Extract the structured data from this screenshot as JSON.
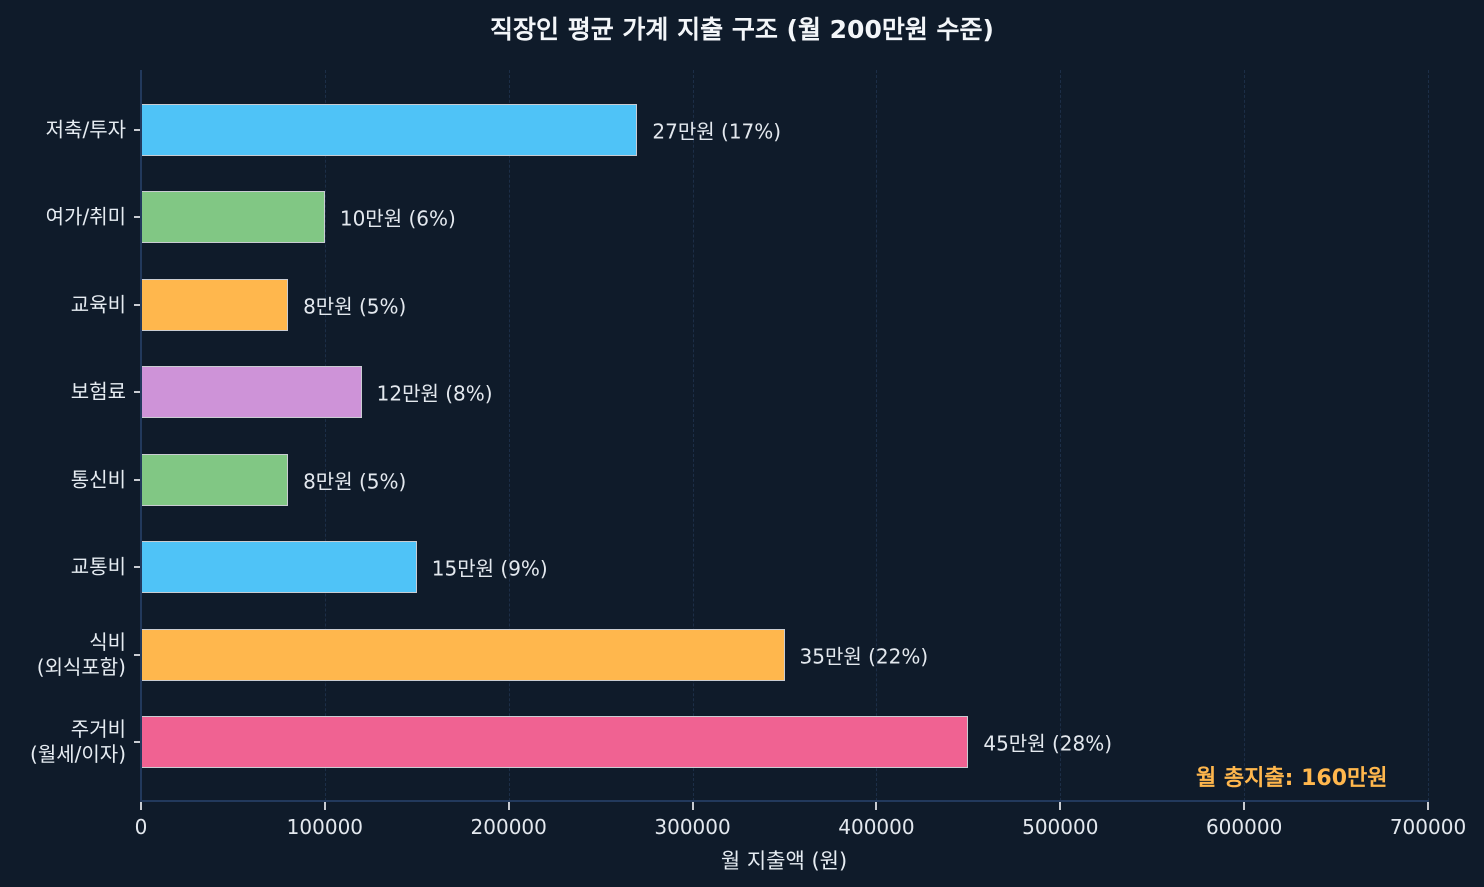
{
  "chart_data": {
    "type": "bar",
    "orientation": "horizontal",
    "title": "직장인 평균 가계 지출 구조 (월 200만원 수준)",
    "xlabel": "월 지출액 (원)",
    "ylabel": "",
    "xlim": [
      0,
      700000
    ],
    "xticks": [
      "0",
      "100000",
      "200000",
      "300000",
      "400000",
      "500000",
      "600000",
      "700000"
    ],
    "grid": "vertical dashed",
    "categories": [
      "저축/투자",
      "여가/취미",
      "교육비",
      "보험료",
      "통신비",
      "교통비",
      "식비\n(외식포함)",
      "주거비\n(월세/이자)"
    ],
    "values": [
      270000,
      100000,
      80000,
      120000,
      80000,
      150000,
      350000,
      450000
    ],
    "colors": [
      "#4fc3f7",
      "#81c784",
      "#ffb74d",
      "#ce93d8",
      "#81c784",
      "#4fc3f7",
      "#ffb74d",
      "#f06292"
    ],
    "data_labels": [
      "27만원 (17%)",
      "10만원 (6%)",
      "8만원 (5%)",
      "12만원 (8%)",
      "8만원 (5%)",
      "15만원 (9%)",
      "35만원 (22%)",
      "45만원 (28%)"
    ],
    "annotations": [
      "월 총지출: 160만원"
    ]
  },
  "title": "직장인 평균 가계 지출 구조 (월 200만원 수준)",
  "xaxis_title": "월 지출액 (원)",
  "total_annotation": "월 총지출: 160만원",
  "accent_color": "#ffb74d",
  "xticks": [
    "0",
    "100000",
    "200000",
    "300000",
    "400000",
    "500000",
    "600000",
    "700000"
  ],
  "bars": [
    {
      "label_line1": "저축/투자",
      "label_line2": "",
      "value": 270000,
      "text": "27만원 (17%)",
      "color": "#4fc3f7"
    },
    {
      "label_line1": "여가/취미",
      "label_line2": "",
      "value": 100000,
      "text": "10만원 (6%)",
      "color": "#81c784"
    },
    {
      "label_line1": "교육비",
      "label_line2": "",
      "value": 80000,
      "text": "8만원 (5%)",
      "color": "#ffb74d"
    },
    {
      "label_line1": "보험료",
      "label_line2": "",
      "value": 120000,
      "text": "12만원 (8%)",
      "color": "#ce93d8"
    },
    {
      "label_line1": "통신비",
      "label_line2": "",
      "value": 80000,
      "text": "8만원 (5%)",
      "color": "#81c784"
    },
    {
      "label_line1": "교통비",
      "label_line2": "",
      "value": 150000,
      "text": "15만원 (9%)",
      "color": "#4fc3f7"
    },
    {
      "label_line1": "식비",
      "label_line2": "(외식포함)",
      "value": 350000,
      "text": "35만원 (22%)",
      "color": "#ffb74d"
    },
    {
      "label_line1": "주거비",
      "label_line2": "(월세/이자)",
      "value": 450000,
      "text": "45만원 (28%)",
      "color": "#f06292"
    }
  ]
}
